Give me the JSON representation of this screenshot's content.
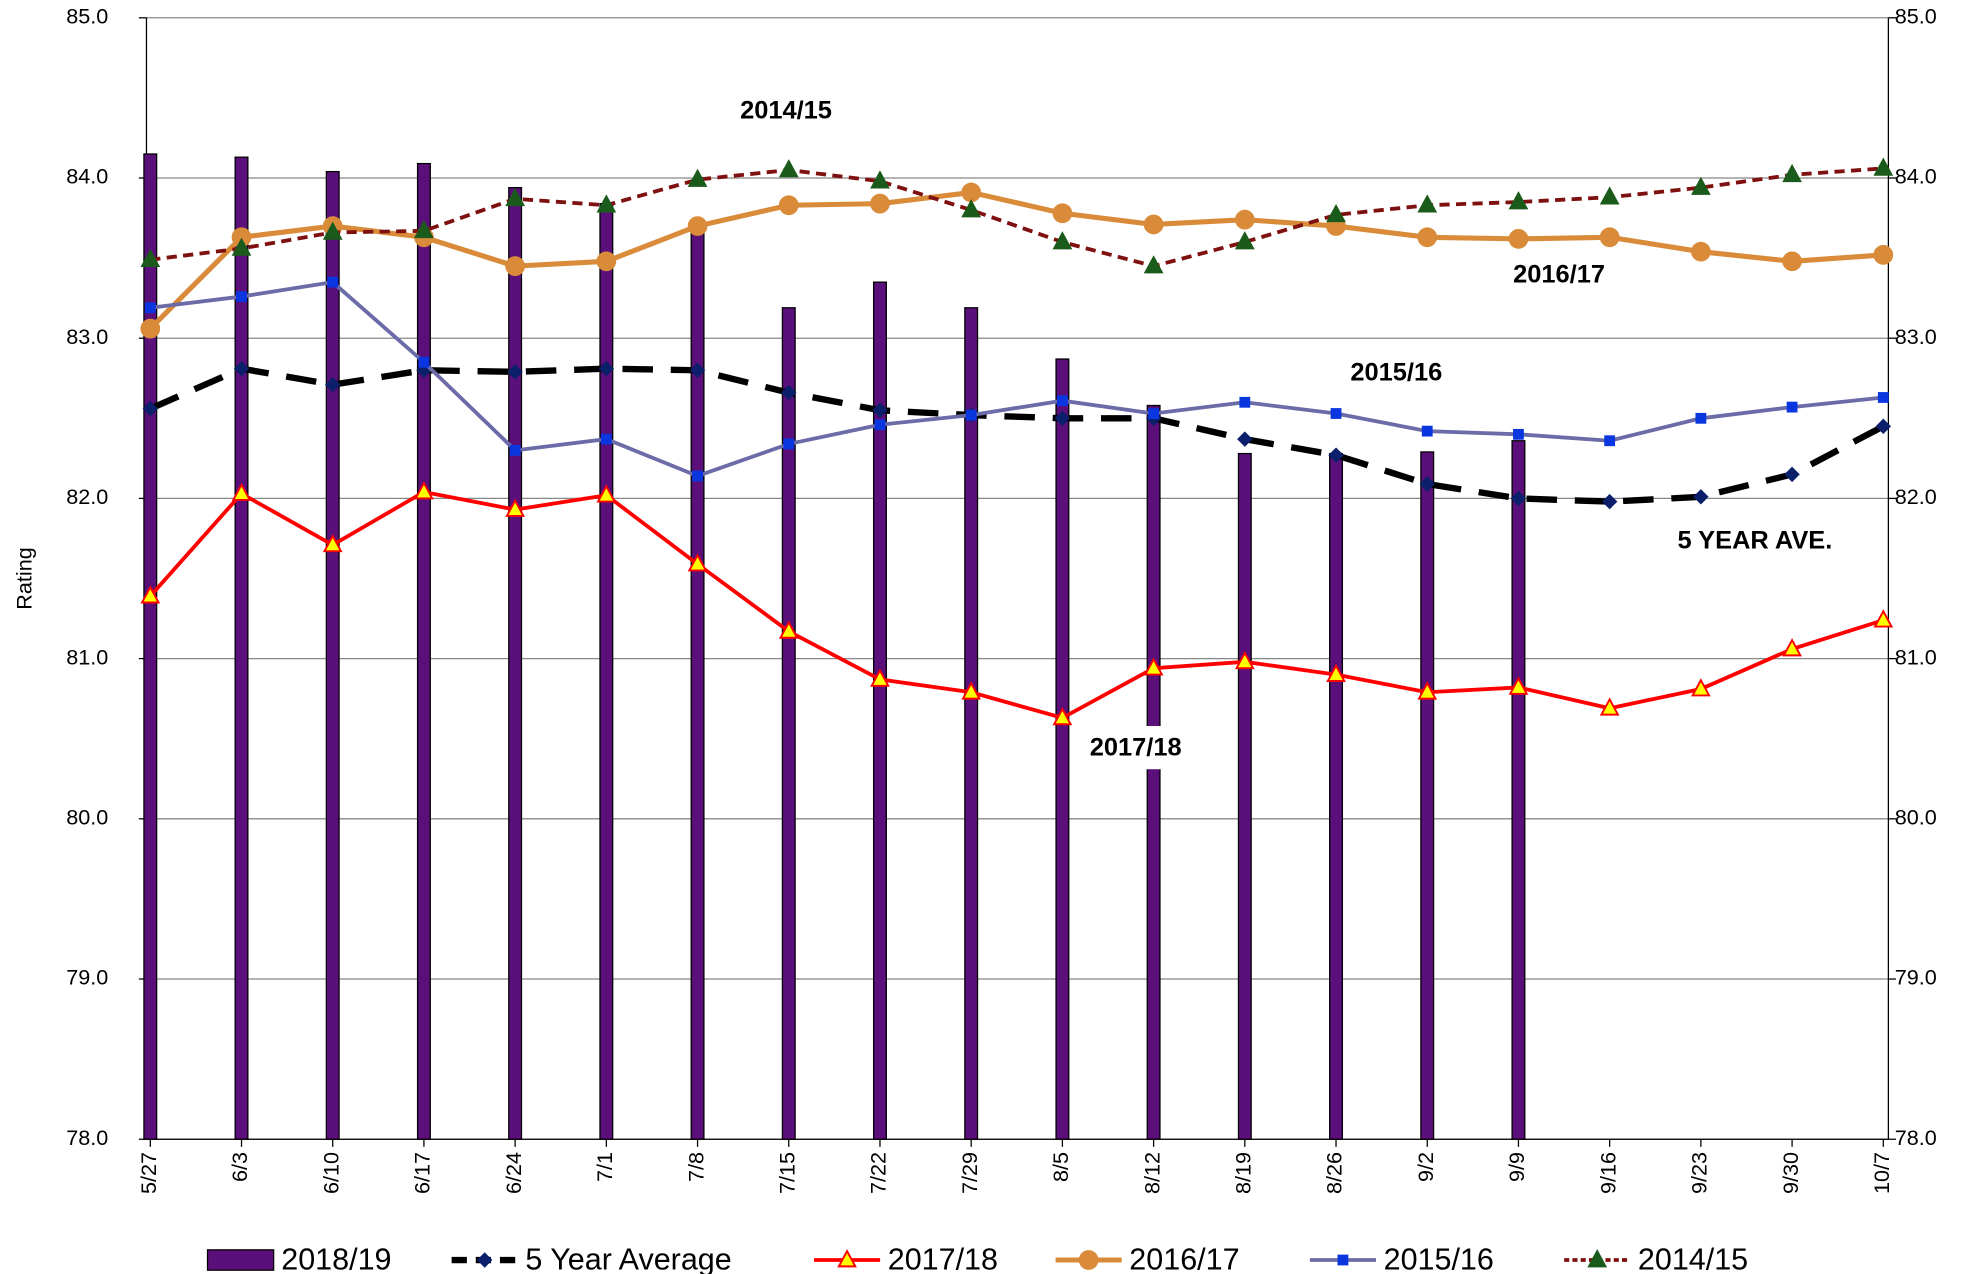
{
  "chart_data": {
    "type": "bar",
    "y_label": "Rating",
    "categories": [
      "5/27",
      "6/3",
      "6/10",
      "6/17",
      "6/24",
      "7/1",
      "7/8",
      "7/15",
      "7/22",
      "7/29",
      "8/5",
      "8/12",
      "8/19",
      "8/26",
      "9/2",
      "9/9",
      "9/16",
      "9/23",
      "9/30",
      "10/7"
    ],
    "ylim": [
      78,
      85
    ],
    "yticks": [
      {
        "value": 78,
        "label": "78.0"
      },
      {
        "value": 79,
        "label": "79.0"
      },
      {
        "value": 80,
        "label": "80.0"
      },
      {
        "value": 81,
        "label": "81.0"
      },
      {
        "value": 82,
        "label": "82.0"
      },
      {
        "value": 83,
        "label": "83.0"
      },
      {
        "value": 84,
        "label": "84.0"
      },
      {
        "value": 85,
        "label": "85.0"
      }
    ],
    "y2lim": [
      78,
      85
    ],
    "y2ticks": [
      {
        "value": 78,
        "label": "78.0"
      },
      {
        "value": 79,
        "label": "79.0"
      },
      {
        "value": 80,
        "label": "80.0"
      },
      {
        "value": 81,
        "label": "81.0"
      },
      {
        "value": 82,
        "label": "82.0"
      },
      {
        "value": 83,
        "label": "83.0"
      },
      {
        "value": 84,
        "label": "84.0"
      },
      {
        "value": 85,
        "label": "85.0"
      }
    ],
    "grid": true,
    "legend": "bottom",
    "series": [
      {
        "name": "2018/19",
        "type": "bar",
        "color": "#5b0f7a",
        "values": [
          84.15,
          84.13,
          84.04,
          84.09,
          83.94,
          83.84,
          83.68,
          83.19,
          83.35,
          83.19,
          82.87,
          82.58,
          82.28,
          82.28,
          82.29,
          82.36,
          null,
          null,
          null,
          null
        ]
      },
      {
        "name": "5 Year Average",
        "type": "line",
        "color": "#000000",
        "dash": "24,14",
        "width": 5,
        "marker": "diamond",
        "marker_color": "#0b1f6b",
        "values": [
          82.56,
          82.81,
          82.71,
          82.8,
          82.79,
          82.81,
          82.8,
          82.66,
          82.55,
          82.52,
          82.5,
          82.5,
          82.37,
          82.27,
          82.09,
          82.0,
          81.98,
          82.01,
          82.15,
          82.45
        ]
      },
      {
        "name": "2017/18",
        "type": "line",
        "color": "#ff0000",
        "width": 3,
        "marker": "triangle",
        "marker_color": "#ffff00",
        "values": [
          81.39,
          82.03,
          81.71,
          82.04,
          81.93,
          82.02,
          81.59,
          81.17,
          80.87,
          80.79,
          80.63,
          80.94,
          80.98,
          80.9,
          80.79,
          80.82,
          80.69,
          80.81,
          81.06,
          81.24
        ]
      },
      {
        "name": "2016/17",
        "type": "line",
        "color": "#d98b3a",
        "width": 4,
        "marker": "circle",
        "marker_color": "#d98b3a",
        "values": [
          83.06,
          83.63,
          83.7,
          83.63,
          83.45,
          83.48,
          83.7,
          83.83,
          83.84,
          83.91,
          83.78,
          83.71,
          83.74,
          83.7,
          83.63,
          83.62,
          83.63,
          83.54,
          83.48,
          83.52
        ]
      },
      {
        "name": "2015/16",
        "type": "line",
        "color": "#6b6ba8",
        "width": 3,
        "marker": "square",
        "marker_color": "#0a36e0",
        "values": [
          83.19,
          83.26,
          83.35,
          82.85,
          82.3,
          82.37,
          82.14,
          82.34,
          82.46,
          82.52,
          82.61,
          82.53,
          82.6,
          82.53,
          82.42,
          82.4,
          82.36,
          82.5,
          82.57,
          82.63
        ]
      },
      {
        "name": "2014/15",
        "type": "line",
        "color": "#7f1010",
        "dash": "8,5",
        "width": 3,
        "marker": "triangle",
        "marker_color": "#1a5a1a",
        "values": [
          83.49,
          83.56,
          83.66,
          83.67,
          83.87,
          83.83,
          83.99,
          84.05,
          83.98,
          83.8,
          83.6,
          83.45,
          83.6,
          83.77,
          83.83,
          83.85,
          83.88,
          83.94,
          84.02,
          84.06
        ]
      }
    ],
    "annotations": [
      "2014/15",
      "2016/17",
      "2015/16",
      "5 YEAR AVE.",
      "2017/18"
    ]
  }
}
